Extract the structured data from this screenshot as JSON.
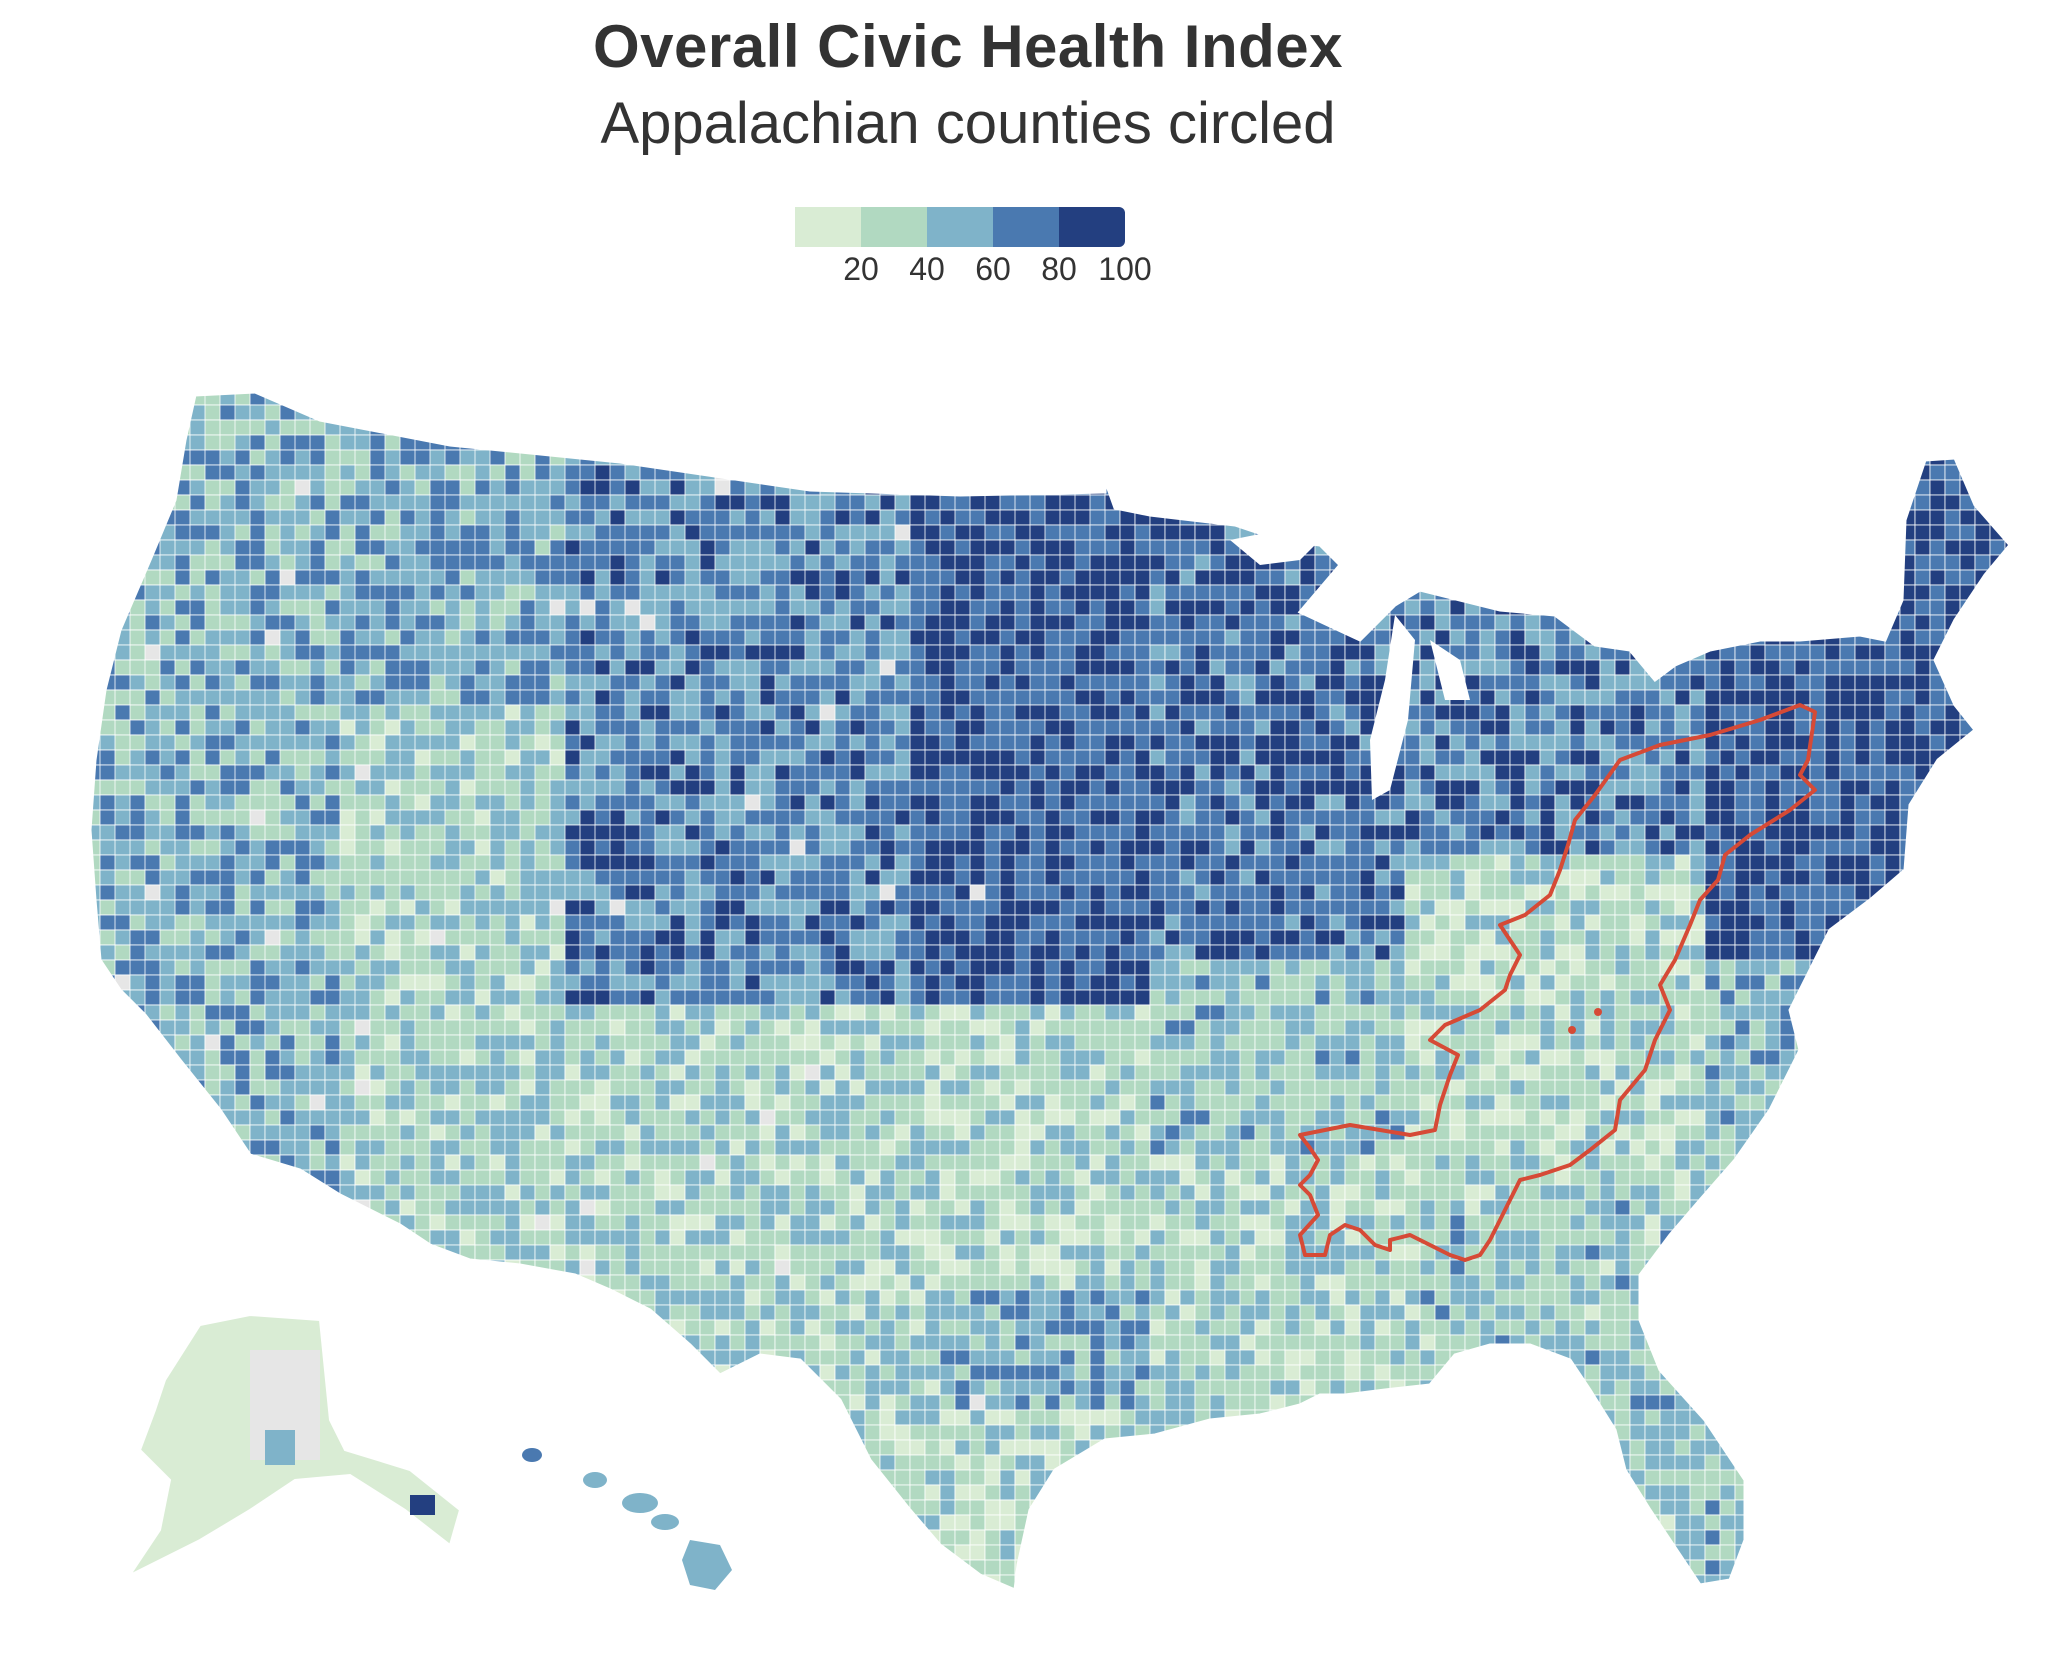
{
  "title": "Overall Civic Health Index",
  "subtitle": "Appalachian counties circled",
  "legend": {
    "ticks": [
      "20",
      "40",
      "60",
      "80",
      "100"
    ],
    "colors": [
      "#d9ecd4",
      "#b1d9c1",
      "#7fb3c9",
      "#4a79b0",
      "#233f80"
    ]
  },
  "colors": {
    "no_data": "#e6e6e6",
    "appalachia_outline": "#d64a36",
    "county_border": "#ffffff"
  }
}
